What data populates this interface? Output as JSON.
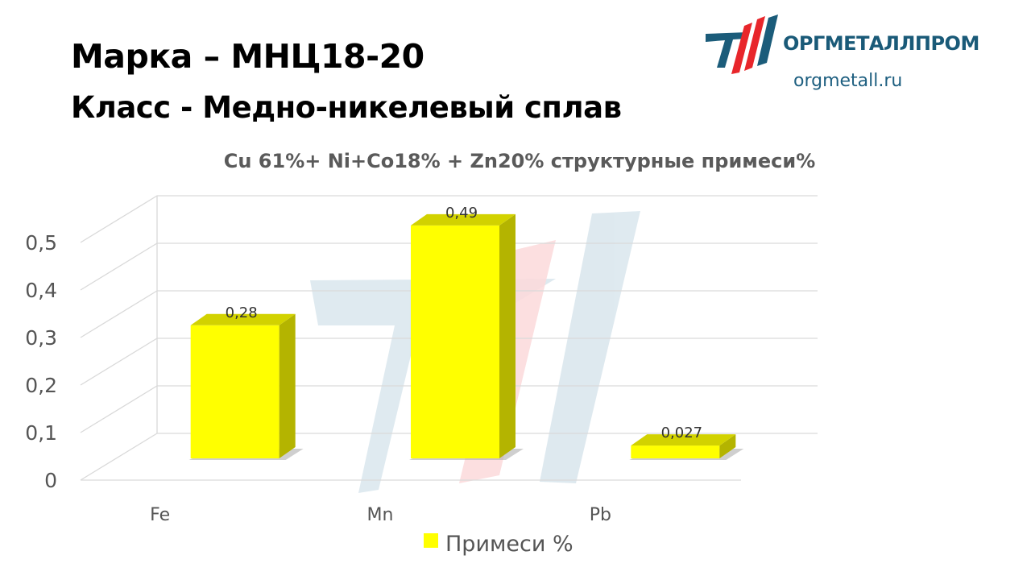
{
  "header": {
    "brand_line": "Марка – МНЦ18-20",
    "class_line": "Класс -  Медно-никелевый сплав"
  },
  "logo": {
    "name": "ОРГМЕТАЛЛПРОМ",
    "url": "orgmetall.ru",
    "colors": {
      "primary": "#1b5c7a",
      "accent": "#e8262b"
    }
  },
  "chart_data": {
    "type": "bar",
    "title": "Cu 61%+ Ni+Co18% + Zn20% структурные  примеси%",
    "categories": [
      "Fe",
      "Mn",
      "Pb"
    ],
    "series": [
      {
        "name": "Примеси %",
        "values": [
          0.28,
          0.49,
          0.027
        ],
        "labels": [
          "0,28",
          "0,49",
          "0,027"
        ],
        "color": "#ffff00"
      }
    ],
    "ylim": [
      0,
      0.5
    ],
    "yticks": [
      0,
      0.1,
      0.2,
      0.3,
      0.4,
      0.5
    ],
    "ytick_labels": [
      "0",
      "0,1",
      "0,2",
      "0,3",
      "0,4",
      "0,5"
    ],
    "grid": true,
    "legend": "bottom",
    "style": "3d-column"
  }
}
